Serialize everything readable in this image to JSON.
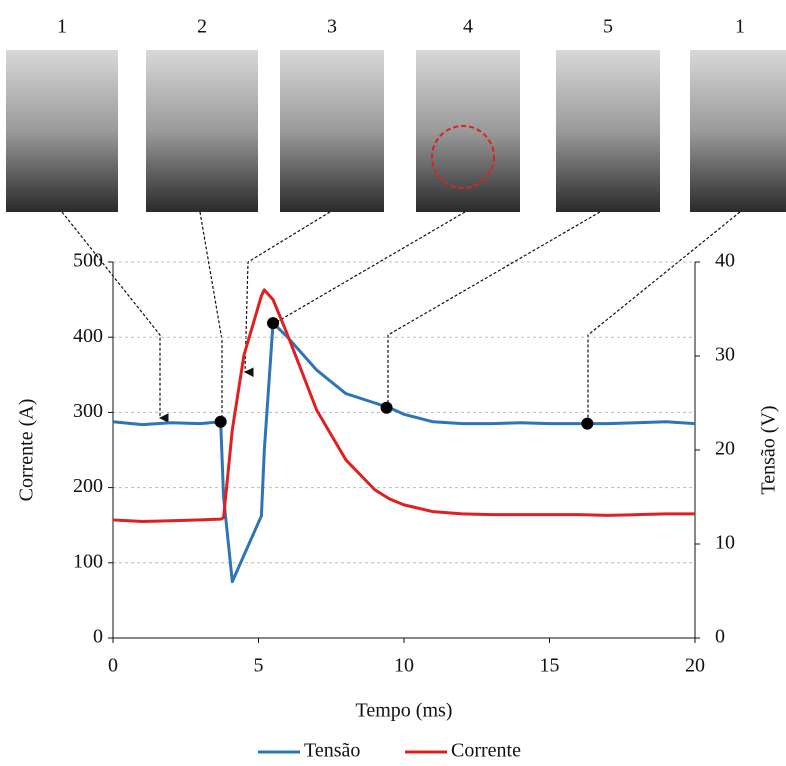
{
  "chart_data": {
    "type": "line",
    "photo_labels": [
      "1",
      "2",
      "3",
      "4",
      "5",
      "1"
    ],
    "xlabel": "Tempo (ms)",
    "ylabel": "Corrente (A)",
    "y2label": "Tensão (V)",
    "x": [
      0,
      1,
      2,
      3,
      3.7,
      3.8,
      4.1,
      4.5,
      5.1,
      5.2,
      5.5,
      6,
      7,
      8,
      9,
      9.5,
      10,
      11,
      12,
      13,
      14,
      15,
      16,
      17,
      18,
      19,
      20
    ],
    "series": [
      {
        "name": "Tensão",
        "color": "#2e75b6",
        "axis": "y2",
        "values": [
          23,
          22.7,
          22.9,
          22.8,
          23,
          15,
          6,
          8.8,
          13,
          20,
          33.5,
          32,
          28.5,
          26,
          25,
          24.5,
          23.8,
          23,
          22.8,
          22.8,
          22.9,
          22.8,
          22.8,
          22.8,
          22.9,
          23,
          22.8
        ]
      },
      {
        "name": "Corrente",
        "color": "#e02020",
        "axis": "y",
        "values": [
          157,
          155,
          156,
          157,
          158,
          160,
          277,
          376,
          455,
          463,
          450,
          403,
          303,
          237,
          197,
          185,
          177,
          168,
          165,
          164,
          164,
          164,
          164,
          163,
          164,
          165,
          165
        ]
      }
    ],
    "points": {
      "x": [
        3.7,
        5.5,
        9.4,
        16.3
      ],
      "values": [
        23,
        33.5,
        24.5,
        22.8
      ],
      "axis": "y2"
    },
    "xlim": [
      0,
      20
    ],
    "xticks": [
      0,
      5,
      10,
      15,
      20
    ],
    "ylim": [
      0,
      500
    ],
    "yticks": [
      0,
      100,
      200,
      300,
      400,
      500
    ],
    "y2lim": [
      0,
      40
    ],
    "y2ticks": [
      0,
      10,
      20,
      30,
      40
    ],
    "grid": true,
    "legend": "bottom"
  }
}
